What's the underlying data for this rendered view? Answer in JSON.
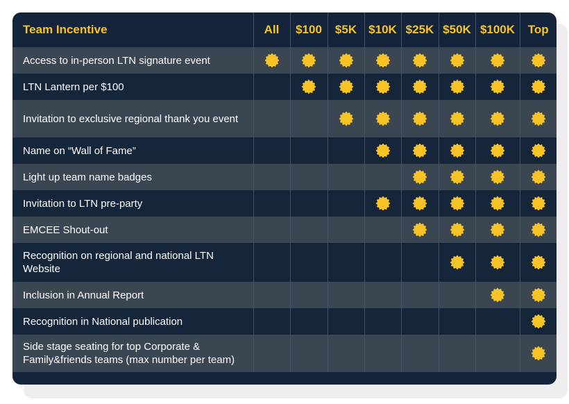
{
  "colors": {
    "accent": "#f7c325",
    "dark_row": "#15263b",
    "light_row": "#3b4653"
  },
  "icon": "starburst-badge-icon",
  "header": {
    "title": "Team Incentive",
    "tiers": [
      "All",
      "$100",
      "$5K",
      "$10K",
      "$25K",
      "$50K",
      "$100K",
      "Top"
    ]
  },
  "rows": [
    {
      "label": "Access to in-person LTN signature event",
      "start_tier": 0
    },
    {
      "label": "LTN Lantern per $100",
      "start_tier": 1
    },
    {
      "label": "Invitation to exclusive regional thank you event",
      "start_tier": 2
    },
    {
      "label": "Name on “Wall of Fame”",
      "start_tier": 3
    },
    {
      "label": "Light up team name badges",
      "start_tier": 4
    },
    {
      "label": "Invitation to LTN pre-party",
      "start_tier": 3
    },
    {
      "label": "EMCEE Shout-out",
      "start_tier": 4
    },
    {
      "label": "Recognition on regional and national LTN Website",
      "start_tier": 5
    },
    {
      "label": "Inclusion in Annual Report",
      "start_tier": 6
    },
    {
      "label": "Recognition in National publication",
      "start_tier": 7
    },
    {
      "label": "Side stage seating for top Corporate & Family&friends teams (max number per team)",
      "start_tier": 7
    }
  ]
}
